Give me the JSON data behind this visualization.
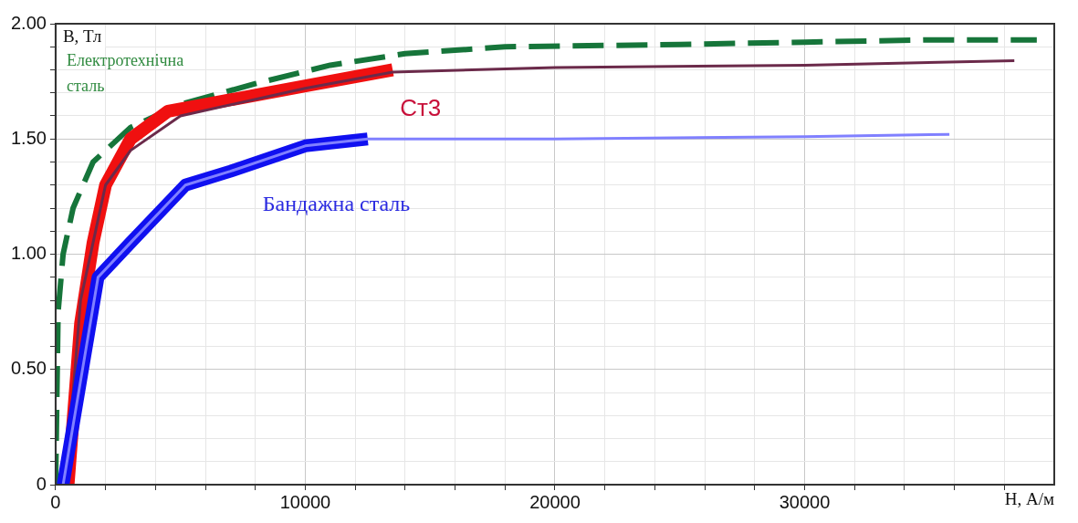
{
  "chart_data": {
    "type": "line",
    "xlabel": "H, А/м",
    "ylabel": "B, Тл",
    "xlim": [
      0,
      40000
    ],
    "ylim": [
      0,
      2
    ],
    "xticks": [
      0,
      {
        "value": 2000,
        "label": null
      },
      {
        "value": 4000,
        "label": null
      },
      {
        "value": 6000,
        "label": null
      },
      {
        "value": 8000,
        "label": null
      },
      10000,
      {
        "value": 12000,
        "label": null
      },
      {
        "value": 14000,
        "label": null
      },
      {
        "value": 16000,
        "label": null
      },
      {
        "value": 18000,
        "label": null
      },
      20000,
      {
        "value": 22000,
        "label": null
      },
      {
        "value": 24000,
        "label": null
      },
      {
        "value": 26000,
        "label": null
      },
      {
        "value": 28000,
        "label": null
      },
      30000,
      {
        "value": 32000,
        "label": null
      },
      {
        "value": 34000,
        "label": null
      },
      {
        "value": 36000,
        "label": null
      },
      {
        "value": 38000,
        "label": null
      }
    ],
    "yticks": [
      0,
      {
        "value": 0.1,
        "label": null
      },
      {
        "value": 0.2,
        "label": null
      },
      {
        "value": 0.3,
        "label": null
      },
      {
        "value": 0.4,
        "label": null
      },
      {
        "value": 0.5,
        "label": "0.50"
      },
      {
        "value": 0.6,
        "label": null
      },
      {
        "value": 0.7,
        "label": null
      },
      {
        "value": 0.8,
        "label": null
      },
      {
        "value": 0.9,
        "label": null
      },
      {
        "value": 1,
        "label": "1.00"
      },
      {
        "value": 1.1,
        "label": null
      },
      {
        "value": 1.2,
        "label": null
      },
      {
        "value": 1.3,
        "label": null
      },
      {
        "value": 1.4,
        "label": null
      },
      {
        "value": 1.5,
        "label": "1.50"
      },
      {
        "value": 1.6,
        "label": null
      },
      {
        "value": 1.7,
        "label": null
      },
      {
        "value": 1.8,
        "label": null
      },
      {
        "value": 1.9,
        "label": null
      },
      {
        "value": 2,
        "label": "2.00"
      }
    ],
    "grid": true,
    "legend": false,
    "marker": "none",
    "series": [
      {
        "name": "Електротехнічна сталь",
        "color": "#16753a",
        "line_style": "dashed",
        "x": [
          0,
          100,
          300,
          700,
          1500,
          3000,
          5000,
          8000,
          11000,
          14000,
          18000,
          25000,
          30000,
          35000,
          39300
        ],
        "values": [
          0,
          0.75,
          1.0,
          1.2,
          1.4,
          1.55,
          1.65,
          1.74,
          1.82,
          1.87,
          1.9,
          1.91,
          1.92,
          1.93,
          1.93
        ]
      },
      {
        "name": "Ст3",
        "color": "#f01010",
        "line_style": "solid",
        "x": [
          500,
          1000,
          1500,
          2000,
          3000,
          4500,
          6000,
          10000,
          13500
        ],
        "values": [
          0,
          0.7,
          1.05,
          1.3,
          1.5,
          1.62,
          1.65,
          1.73,
          1.8
        ]
      },
      {
        "color": "#6b2a4a",
        "line_style": "solid",
        "x": [
          400,
          1000,
          2000,
          3000,
          5000,
          10000,
          13500,
          20000,
          30000,
          38400
        ],
        "values": [
          0,
          0.8,
          1.3,
          1.45,
          1.6,
          1.72,
          1.79,
          1.81,
          1.82,
          1.84
        ]
      },
      {
        "name": "Бандажна сталь",
        "color": "#1010f0",
        "line_style": "solid",
        "x": [
          300,
          1000,
          1700,
          3000,
          5200,
          7000,
          10000,
          12500
        ],
        "values": [
          0,
          0.45,
          0.9,
          1.05,
          1.3,
          1.36,
          1.47,
          1.5
        ]
      },
      {
        "color": "#8080ff",
        "line_style": "solid",
        "x": [
          300,
          1000,
          1700,
          3000,
          5200,
          7000,
          10000,
          12500,
          20000,
          30000,
          35800
        ],
        "values": [
          0,
          0.45,
          0.9,
          1.05,
          1.3,
          1.36,
          1.47,
          1.5,
          1.5,
          1.51,
          1.52
        ]
      }
    ]
  }
}
